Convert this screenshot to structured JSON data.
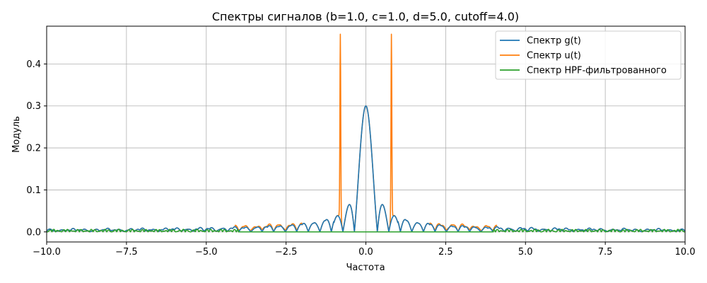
{
  "chart_data": {
    "type": "line",
    "title": "Спектры сигналов (b=1.0, c=1.0, d=5.0, cutoff=4.0)",
    "xlabel": "Частота",
    "ylabel": "Модуль",
    "xlim": [
      -10,
      10
    ],
    "ylim": [
      -0.024,
      0.49
    ],
    "x_ticks": [
      -10,
      -7.5,
      -5,
      -2.5,
      0,
      2.5,
      5,
      7.5,
      10
    ],
    "x_tick_labels": [
      "−10.0",
      "−7.5",
      "−5.0",
      "−2.5",
      "0.0",
      "2.5",
      "5.0",
      "7.5",
      "10.0"
    ],
    "y_ticks": [
      0,
      0.1,
      0.2,
      0.3,
      0.4
    ],
    "y_tick_labels": [
      "0.0",
      "0.1",
      "0.2",
      "0.3",
      "0.4"
    ],
    "grid": true,
    "legend_position": "top-right",
    "parameters": {
      "b": 1.0,
      "c": 1.0,
      "d": 5.0,
      "cutoff": 4.0
    },
    "series": [
      {
        "name": "Спектр g(t)",
        "color": "#1f77b4",
        "description_model": "sinc-like main lobe",
        "x": [
          -10,
          -8,
          -6,
          -4,
          -2,
          -1.6,
          -1.25,
          -0.8,
          -0.5,
          -0.35,
          -0.2,
          0,
          0.2,
          0.35,
          0.5,
          0.8,
          1.25,
          1.6,
          2,
          4,
          6,
          8,
          10
        ],
        "y": [
          0.003,
          0.004,
          0.005,
          0.006,
          0.013,
          0.017,
          0.024,
          0.038,
          0.064,
          0.0,
          0.18,
          0.3,
          0.18,
          0.0,
          0.064,
          0.038,
          0.024,
          0.017,
          0.013,
          0.006,
          0.005,
          0.004,
          0.003
        ]
      },
      {
        "name": "Спектр u(t)",
        "color": "#ff7f0e",
        "x": [
          -10,
          -4,
          -2,
          -1.25,
          -0.85,
          -0.8,
          -0.75,
          -0.5,
          -0.2,
          0,
          0.2,
          0.5,
          0.75,
          0.8,
          0.85,
          1.25,
          2,
          4,
          10
        ],
        "y": [
          0.004,
          0.008,
          0.016,
          0.03,
          0.05,
          0.47,
          0.05,
          0.064,
          0.18,
          0.3,
          0.18,
          0.064,
          0.05,
          0.47,
          0.05,
          0.03,
          0.016,
          0.008,
          0.004
        ]
      },
      {
        "name": "Спектр HPF-фильтрованного",
        "color": "#2ca02c",
        "x": [
          -10,
          -8,
          -6,
          -4.0,
          -3.99,
          3.99,
          4.0,
          6,
          8,
          10
        ],
        "y": [
          0.004,
          0.005,
          0.005,
          0.005,
          0.0,
          0.0,
          0.005,
          0.005,
          0.005,
          0.004
        ]
      }
    ]
  }
}
